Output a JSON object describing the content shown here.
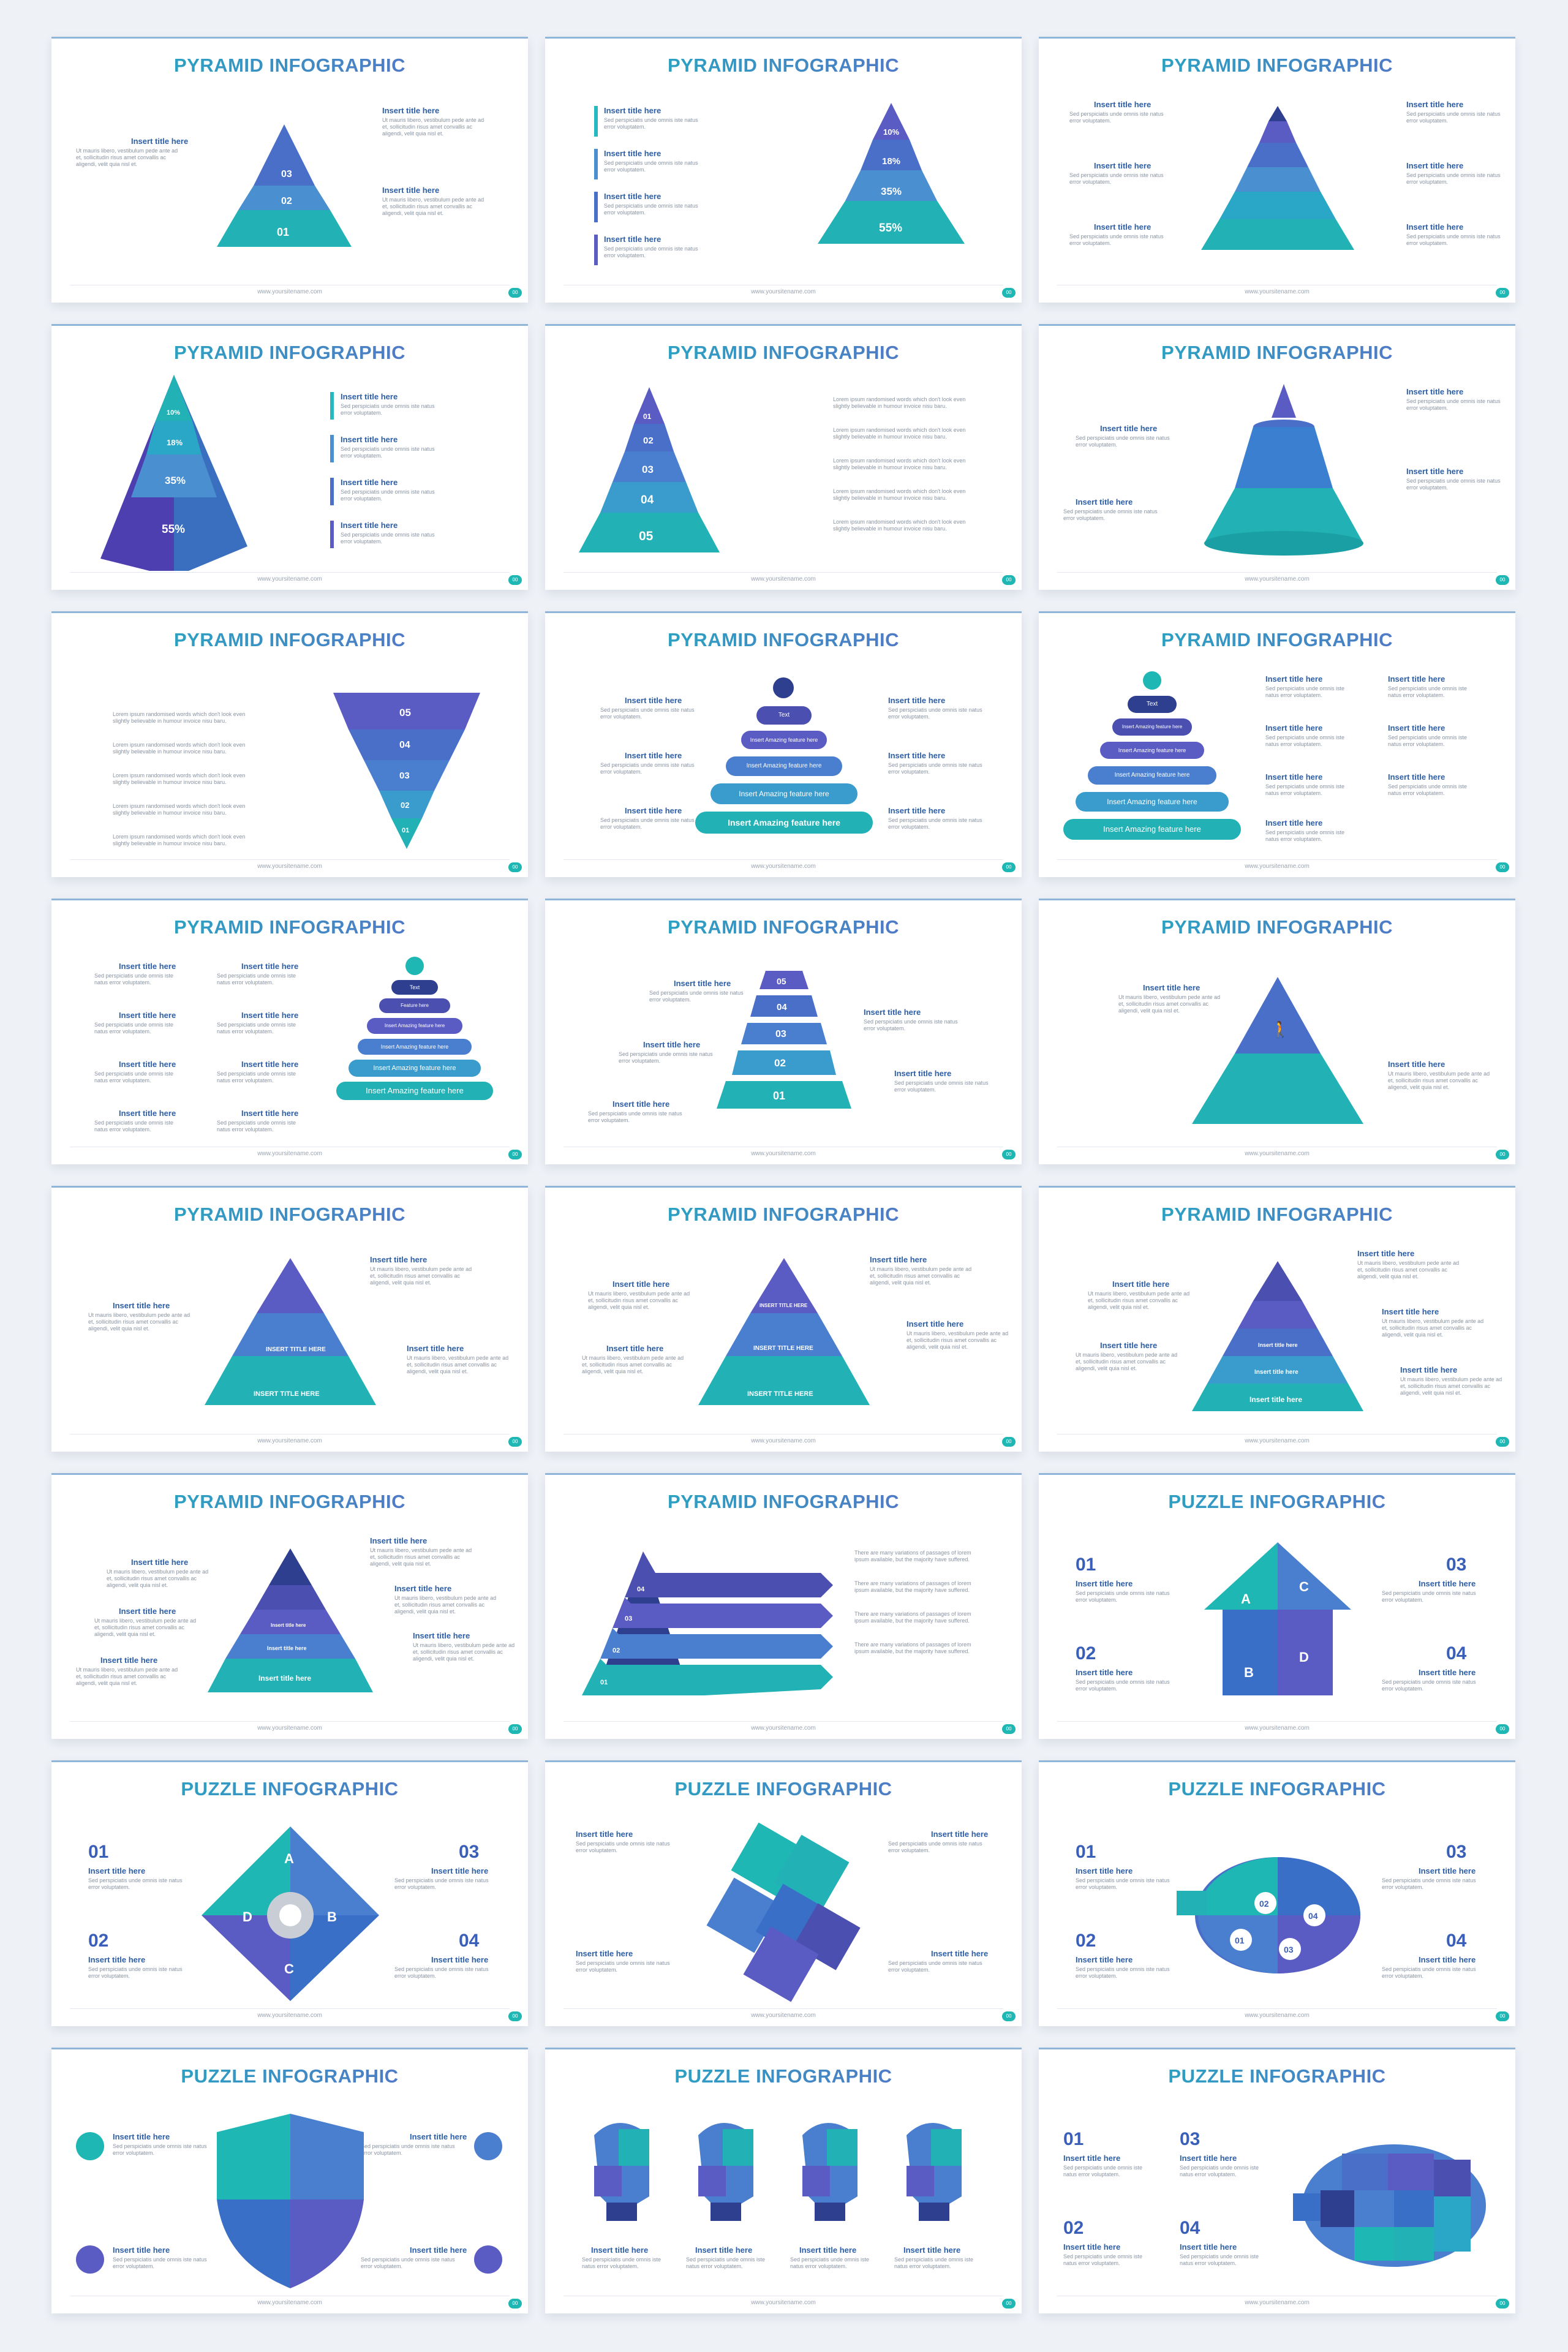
{
  "footer": "www.yoursitename.com",
  "badge": "00",
  "titles": {
    "pyramid": "PYRAMID INFOGRAPHIC",
    "puzzle": "PUZZLE INFOGRAPHIC"
  },
  "text": {
    "insert_title": "Insert title here",
    "insert_title_caps": "INSERT TITLE HERE",
    "lorem_short": "Sed perspiciatis unde omnis iste natus error voluptatem.",
    "lorem_ut": "Ut mauris libero, vestibulum pede ante ad et, sollicitudin risus amet convallis ac aligendi, velit quia nisl et.",
    "lorem_long": "Lorem ipsum randomised words which don't look even slightly believable in humour invoice nisu baru.",
    "lorem_many": "There are many variations of passages of lorem ipsum available, but the majority have suffered.",
    "amazing": "Insert Amazing feature here",
    "text_label": "Text",
    "feature": "Feature here"
  },
  "levels": {
    "three": [
      "01",
      "02",
      "03"
    ],
    "five": [
      "01",
      "02",
      "03",
      "04",
      "05"
    ],
    "four": [
      "01",
      "02",
      "03",
      "04"
    ],
    "percent": [
      "10%",
      "18%",
      "35%",
      "55%"
    ]
  },
  "puzzle": {
    "letters": [
      "A",
      "B",
      "C",
      "D"
    ],
    "numbers": [
      "01",
      "02",
      "03",
      "04"
    ]
  },
  "colors": {
    "teal": "#1fb7b3",
    "blue": "#4a7fd0",
    "indigo": "#5b5bc4",
    "navy": "#2e3f8f"
  }
}
